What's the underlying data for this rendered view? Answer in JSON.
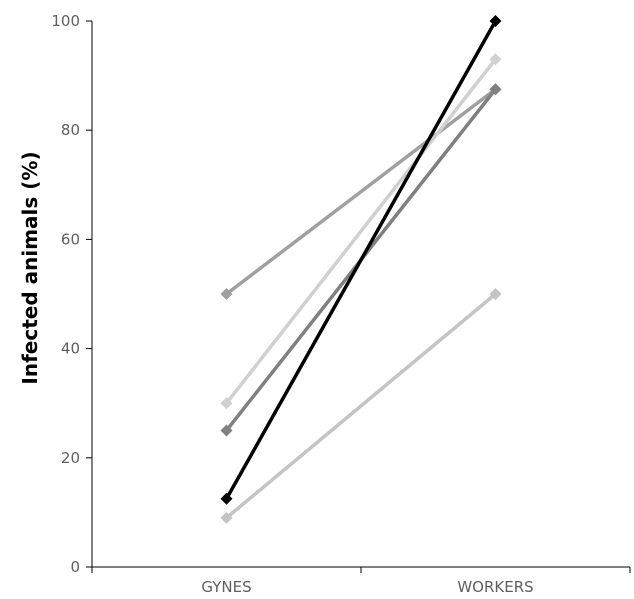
{
  "chart_data": {
    "type": "line",
    "title": "",
    "xlabel": "",
    "ylabel": "Infected animals (%)",
    "categories": [
      "GYNES",
      "WORKERS"
    ],
    "yticks": [
      "0",
      "20",
      "40",
      "60",
      "80",
      "100"
    ],
    "ylim": [
      0,
      100
    ],
    "grid": false,
    "legend": "none",
    "series": [
      {
        "values": [
          50,
          87.5
        ],
        "color": "#a0a0a0"
      },
      {
        "values": [
          30,
          93
        ],
        "color": "#d0d0d0"
      },
      {
        "values": [
          25,
          87.5
        ],
        "color": "#808080"
      },
      {
        "values": [
          9,
          50
        ],
        "color": "#c4c4c4"
      },
      {
        "values": [
          12.5,
          100
        ],
        "color": "#000000"
      }
    ]
  }
}
